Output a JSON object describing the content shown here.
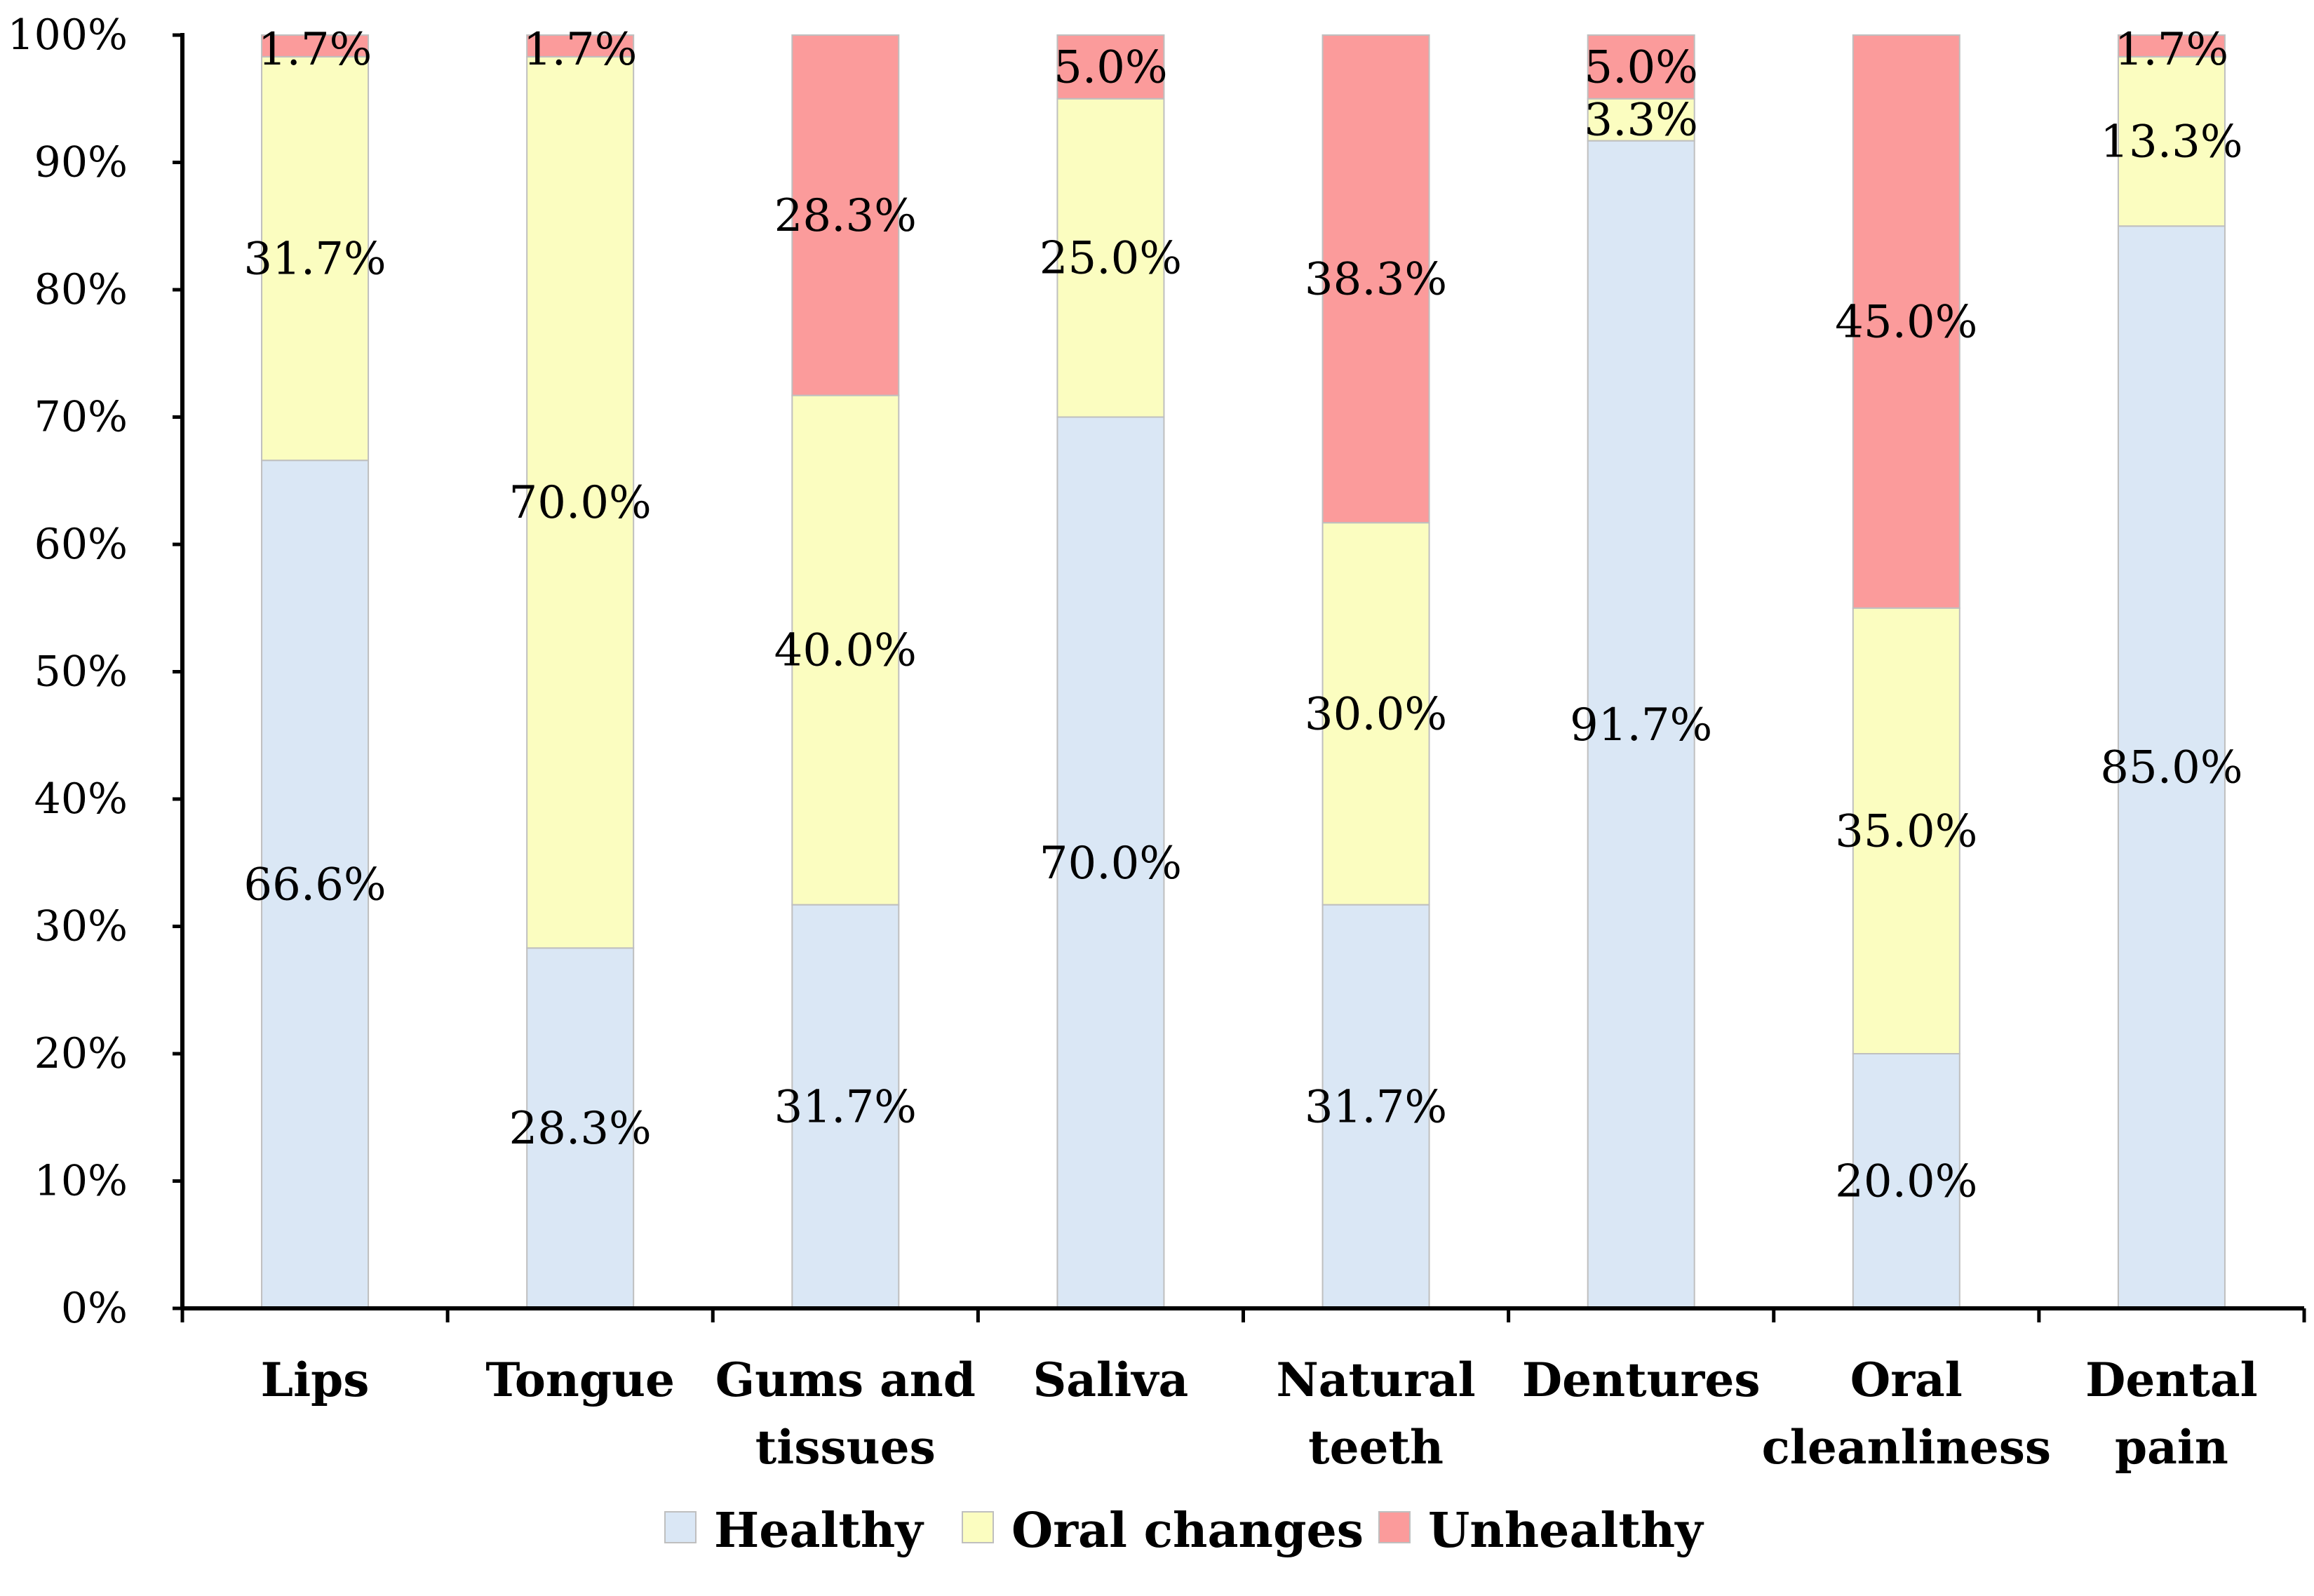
{
  "chart_data": {
    "type": "bar",
    "stacked": true,
    "title": "",
    "xlabel": "",
    "ylabel": "",
    "ylim": [
      0,
      100
    ],
    "y_ticks": [
      "0%",
      "10%",
      "20%",
      "30%",
      "40%",
      "50%",
      "60%",
      "70%",
      "80%",
      "90%",
      "100%"
    ],
    "categories": [
      [
        "Lips"
      ],
      [
        "Tongue"
      ],
      [
        "Gums and",
        "tissues"
      ],
      [
        "Saliva"
      ],
      [
        "Natural",
        "teeth"
      ],
      [
        "Dentures"
      ],
      [
        "Oral",
        "cleanliness"
      ],
      [
        "Dental",
        "pain"
      ]
    ],
    "series": [
      {
        "name": "Healthy",
        "color": "#dae7f5",
        "values": [
          66.6,
          28.3,
          31.7,
          70.0,
          31.7,
          91.7,
          20.0,
          85.0
        ],
        "labels": [
          "66.6%",
          "28.3%",
          "31.7%",
          "70.0%",
          "31.7%",
          "91.7%",
          "20.0%",
          "85.0%"
        ]
      },
      {
        "name": "Oral changes",
        "color": "#fbfdc0",
        "values": [
          31.7,
          70.0,
          40.0,
          25.0,
          30.0,
          3.3,
          35.0,
          13.3
        ],
        "labels": [
          "31.7%",
          "70.0%",
          "40.0%",
          "25.0%",
          "30.0%",
          "3.3%",
          "35.0%",
          "13.3%"
        ]
      },
      {
        "name": "Unhealthy",
        "color": "#fb9b9b",
        "values": [
          1.7,
          1.7,
          28.3,
          5.0,
          38.3,
          5.0,
          45.0,
          1.7
        ],
        "labels": [
          "1.7%",
          "1.7%",
          "28.3%",
          "5.0%",
          "38.3%",
          "5.0%",
          "45.0%",
          "1.7%"
        ]
      }
    ],
    "legend": {
      "position": "bottom",
      "items": [
        "Healthy",
        "Oral changes",
        "Unhealthy"
      ]
    },
    "grid": false
  }
}
